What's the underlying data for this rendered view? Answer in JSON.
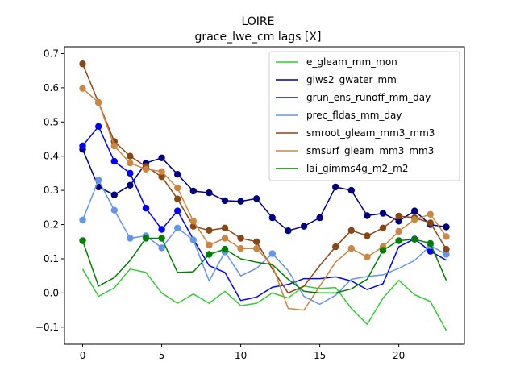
{
  "chart_data": {
    "type": "line",
    "title": "LOIRE",
    "subtitle": "grace_lwe_cm lags [X]",
    "xlabel": "",
    "ylabel": "",
    "xlim": [
      -1.15,
      24.15
    ],
    "ylim": [
      -0.15,
      0.72
    ],
    "xticks": [
      0,
      5,
      10,
      15,
      20
    ],
    "yticks": [
      -0.1,
      0.0,
      0.1,
      0.2,
      0.3,
      0.4,
      0.5,
      0.6,
      0.7
    ],
    "ytick_labels": [
      "−0.1",
      "0.0",
      "0.1",
      "0.2",
      "0.3",
      "0.4",
      "0.5",
      "0.6",
      "0.7"
    ],
    "grid": false,
    "legend_position": "top-right",
    "x": [
      0,
      1,
      2,
      3,
      4,
      5,
      6,
      7,
      8,
      9,
      10,
      11,
      12,
      13,
      14,
      15,
      16,
      17,
      18,
      19,
      20,
      21,
      22,
      23
    ],
    "series": [
      {
        "name": "e_gleam_mm_mon",
        "color": "#32cd32",
        "values": [
          0.07,
          -0.01,
          0.015,
          0.07,
          0.06,
          0.0,
          -0.03,
          -0.003,
          -0.03,
          0.005,
          -0.037,
          -0.03,
          0.0,
          -0.015,
          0.02,
          0.013,
          0.016,
          -0.045,
          -0.092,
          -0.015,
          0.037,
          -0.005,
          -0.025,
          -0.11
        ],
        "markers": []
      },
      {
        "name": "glws2_gwater_mm",
        "color": "#000080",
        "values": [
          0.42,
          0.31,
          0.287,
          0.315,
          0.38,
          0.395,
          0.347,
          0.298,
          0.293,
          0.27,
          0.268,
          0.276,
          0.22,
          0.182,
          0.195,
          0.22,
          0.31,
          0.3,
          0.226,
          0.233,
          0.21,
          0.24,
          0.2,
          0.193
        ],
        "markers": [
          0,
          1,
          2,
          3,
          4,
          5,
          6,
          7,
          8,
          9,
          10,
          11,
          12,
          13,
          14,
          15,
          16,
          17,
          18,
          19,
          20,
          21,
          22,
          23
        ]
      },
      {
        "name": "grun_ens_runoff_mm_day",
        "color": "#0000ff",
        "values": [
          0.43,
          0.487,
          0.385,
          0.35,
          0.248,
          0.186,
          0.24,
          0.157,
          0.08,
          0.06,
          -0.022,
          -0.012,
          0.017,
          0.025,
          0.042,
          0.042,
          0.047,
          0.035,
          0.01,
          0.027,
          0.135,
          0.158,
          0.122,
          0.096
        ],
        "markers": [
          0,
          1,
          2,
          3,
          4,
          5,
          6,
          21,
          22
        ]
      },
      {
        "name": "prec_fldas_mm_day",
        "color": "#6495ed",
        "values": [
          0.213,
          0.33,
          0.242,
          0.16,
          0.167,
          0.132,
          0.19,
          0.155,
          0.035,
          0.12,
          0.05,
          0.072,
          0.115,
          0.065,
          -0.01,
          -0.033,
          -0.007,
          0.04,
          0.048,
          0.053,
          0.072,
          0.095,
          0.138,
          0.113
        ],
        "markers": [
          0,
          1,
          2,
          3,
          4,
          5,
          6,
          7,
          9,
          12,
          22,
          23
        ]
      },
      {
        "name": "smroot_gleam_mm3_mm3",
        "color": "#8b4513",
        "values": [
          0.67,
          0.557,
          0.443,
          0.4,
          0.37,
          0.34,
          0.275,
          0.195,
          0.183,
          0.19,
          0.16,
          0.15,
          0.07,
          0.0,
          0.02,
          0.08,
          0.135,
          0.183,
          0.167,
          0.19,
          0.225,
          0.22,
          0.205,
          0.128
        ],
        "markers": [
          0,
          1,
          2,
          3,
          4,
          5,
          6,
          7,
          8,
          9,
          10,
          11,
          16,
          17,
          18,
          19,
          20,
          21,
          22,
          23
        ]
      },
      {
        "name": "smsurf_gleam_mm3_mm3",
        "color": "#cd853f",
        "values": [
          0.598,
          0.557,
          0.43,
          0.38,
          0.362,
          0.355,
          0.307,
          0.21,
          0.14,
          0.16,
          0.13,
          0.13,
          0.08,
          -0.045,
          -0.05,
          0.02,
          0.09,
          0.13,
          0.105,
          0.135,
          0.18,
          0.215,
          0.23,
          0.165
        ],
        "markers": [
          0,
          1,
          2,
          3,
          4,
          5,
          6,
          7,
          8,
          9,
          10,
          11,
          17,
          18,
          19,
          20,
          21,
          22,
          23
        ]
      },
      {
        "name": "lai_gimms4g_m2_m2",
        "color": "#008000",
        "values": [
          0.153,
          0.02,
          0.045,
          0.095,
          0.16,
          0.16,
          0.06,
          0.062,
          0.113,
          0.128,
          0.1,
          0.09,
          0.083,
          0.04,
          0.005,
          0.0,
          0.0,
          0.012,
          0.04,
          0.125,
          0.153,
          0.157,
          0.145,
          0.037
        ],
        "markers": [
          0,
          4,
          5,
          8,
          9,
          19,
          20,
          21,
          22
        ]
      }
    ]
  }
}
